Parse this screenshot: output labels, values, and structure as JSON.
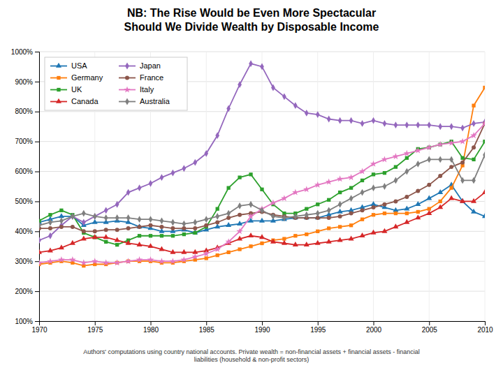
{
  "chart_data": {
    "type": "line",
    "title": "NB: The Rise Would be Even More Spectacular\nShould We Divide Wealth by Disposable Income",
    "annotations": [
      "Authors' computations using country national accounts. Private wealth = non-financial assets + financial assets - financial\nliabilities (household & non-profit sectors)"
    ],
    "x": [
      1970,
      1971,
      1972,
      1973,
      1974,
      1975,
      1976,
      1977,
      1978,
      1979,
      1980,
      1981,
      1982,
      1983,
      1984,
      1985,
      1986,
      1987,
      1988,
      1989,
      1990,
      1991,
      1992,
      1993,
      1994,
      1995,
      1996,
      1997,
      1998,
      1999,
      2000,
      2001,
      2002,
      2003,
      2004,
      2005,
      2006,
      2007,
      2008,
      2009,
      2010
    ],
    "xlim": [
      1970,
      2010
    ],
    "xticks": [
      1970,
      1975,
      1980,
      1985,
      1990,
      1995,
      2000,
      2005,
      2010
    ],
    "ylim": [
      100,
      1000
    ],
    "yticks": [
      {
        "value": 100,
        "label": "100%"
      },
      {
        "value": 200,
        "label": "200%"
      },
      {
        "value": 300,
        "label": "300%"
      },
      {
        "value": 400,
        "label": "400%"
      },
      {
        "value": 500,
        "label": "500%"
      },
      {
        "value": 600,
        "label": "600%"
      },
      {
        "value": 700,
        "label": "700%"
      },
      {
        "value": 800,
        "label": "800%"
      },
      {
        "value": 900,
        "label": "900%"
      },
      {
        "value": 1000,
        "label": "1000%"
      }
    ],
    "grid": true,
    "legend": "upper-left",
    "series": [
      {
        "name": "USA",
        "marker": "triangle",
        "values": [
          430,
          440,
          450,
          450,
          420,
          430,
          430,
          435,
          430,
          415,
          410,
          400,
          400,
          405,
          395,
          405,
          415,
          420,
          425,
          435,
          435,
          435,
          440,
          445,
          445,
          445,
          455,
          465,
          470,
          480,
          490,
          480,
          470,
          475,
          490,
          510,
          530,
          555,
          500,
          465,
          450
        ]
      },
      {
        "name": "Germany",
        "marker": "square",
        "values": [
          290,
          295,
          300,
          295,
          285,
          290,
          290,
          295,
          300,
          300,
          300,
          295,
          295,
          300,
          305,
          310,
          320,
          330,
          340,
          350,
          360,
          370,
          375,
          385,
          390,
          400,
          410,
          415,
          420,
          440,
          455,
          460,
          460,
          460,
          465,
          475,
          500,
          545,
          620,
          820,
          880
        ]
      },
      {
        "name": "UK",
        "marker": "square",
        "values": [
          435,
          455,
          470,
          455,
          395,
          380,
          365,
          355,
          370,
          385,
          385,
          385,
          385,
          390,
          395,
          415,
          475,
          545,
          580,
          590,
          540,
          490,
          460,
          460,
          475,
          490,
          505,
          530,
          545,
          570,
          590,
          595,
          615,
          645,
          675,
          680,
          690,
          700,
          645,
          640,
          700
        ]
      },
      {
        "name": "Canada",
        "marker": "triangle",
        "values": [
          330,
          335,
          345,
          360,
          375,
          380,
          380,
          370,
          360,
          355,
          350,
          340,
          330,
          330,
          330,
          335,
          345,
          360,
          375,
          385,
          380,
          365,
          360,
          355,
          355,
          360,
          365,
          370,
          375,
          385,
          395,
          400,
          415,
          430,
          445,
          460,
          480,
          510,
          500,
          500,
          530
        ]
      },
      {
        "name": "Japan",
        "marker": "diamond",
        "values": [
          370,
          385,
          420,
          450,
          430,
          450,
          470,
          490,
          530,
          545,
          560,
          580,
          595,
          610,
          630,
          660,
          720,
          810,
          890,
          960,
          950,
          880,
          850,
          820,
          795,
          790,
          775,
          770,
          770,
          760,
          770,
          760,
          755,
          755,
          755,
          755,
          750,
          750,
          745,
          760,
          765
        ]
      },
      {
        "name": "France",
        "marker": "circle",
        "values": [
          410,
          410,
          415,
          415,
          400,
          400,
          405,
          405,
          410,
          415,
          420,
          415,
          410,
          410,
          410,
          420,
          430,
          445,
          455,
          460,
          465,
          455,
          450,
          445,
          445,
          445,
          445,
          450,
          460,
          470,
          480,
          490,
          500,
          515,
          535,
          555,
          585,
          615,
          630,
          680,
          760
        ]
      },
      {
        "name": "Italy",
        "marker": "star",
        "values": [
          295,
          300,
          305,
          305,
          295,
          300,
          295,
          295,
          300,
          305,
          305,
          300,
          300,
          305,
          315,
          325,
          340,
          365,
          400,
          450,
          475,
          495,
          510,
          530,
          540,
          555,
          565,
          575,
          580,
          600,
          625,
          640,
          650,
          660,
          670,
          680,
          690,
          695,
          700,
          720,
          760
        ]
      },
      {
        "name": "Australia",
        "marker": "diamond",
        "values": [
          420,
          430,
          435,
          450,
          460,
          450,
          445,
          445,
          445,
          440,
          440,
          435,
          430,
          425,
          430,
          440,
          450,
          460,
          485,
          490,
          470,
          450,
          445,
          450,
          455,
          460,
          470,
          490,
          510,
          530,
          545,
          550,
          570,
          600,
          625,
          640,
          640,
          640,
          570,
          570,
          655
        ]
      }
    ]
  }
}
